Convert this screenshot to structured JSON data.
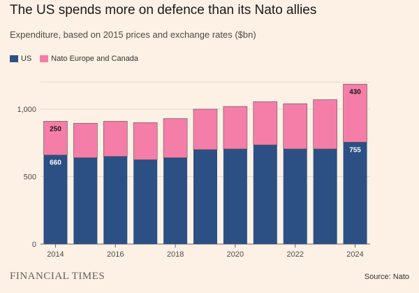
{
  "title": "The US spends more on defence than its Nato allies",
  "subtitle": "Expenditure, based on 2015 prices and exchange rates ($bn)",
  "source": "Source: Nato",
  "publisher": "FINANCIAL TIMES",
  "colors": {
    "us": "#2c5084",
    "allies": "#f47ea8",
    "background": "#fdf1e6"
  },
  "chart_data": {
    "type": "bar",
    "stacked": true,
    "title": "The US spends more on defence than its Nato allies",
    "subtitle": "Expenditure, based on 2015 prices and exchange rates ($bn)",
    "categories": [
      "2014",
      "2015",
      "2016",
      "2017",
      "2018",
      "2019",
      "2020",
      "2021",
      "2022",
      "2023",
      "2024"
    ],
    "x_tick_labels": [
      "2014",
      "2016",
      "2018",
      "2020",
      "2022",
      "2024"
    ],
    "series": [
      {
        "name": "US",
        "color": "#2c5084",
        "values": [
          660,
          640,
          650,
          625,
          640,
          700,
          705,
          735,
          705,
          705,
          755
        ]
      },
      {
        "name": "Nato Europe and Canada",
        "color": "#f47ea8",
        "values": [
          250,
          255,
          260,
          275,
          290,
          300,
          315,
          320,
          335,
          365,
          430
        ]
      }
    ],
    "data_labels": [
      {
        "category": "2014",
        "series": "US",
        "text": "660"
      },
      {
        "category": "2014",
        "series": "Nato Europe and Canada",
        "text": "250"
      },
      {
        "category": "2024",
        "series": "US",
        "text": "755"
      },
      {
        "category": "2024",
        "series": "Nato Europe and Canada",
        "text": "430"
      }
    ],
    "y_ticks": [
      0,
      500,
      1000
    ],
    "y_tick_labels": [
      "0",
      "500",
      "1,000"
    ],
    "ylim": [
      0,
      1200
    ],
    "xlabel": "",
    "ylabel": "",
    "grid": true,
    "legend_position": "top-left"
  }
}
